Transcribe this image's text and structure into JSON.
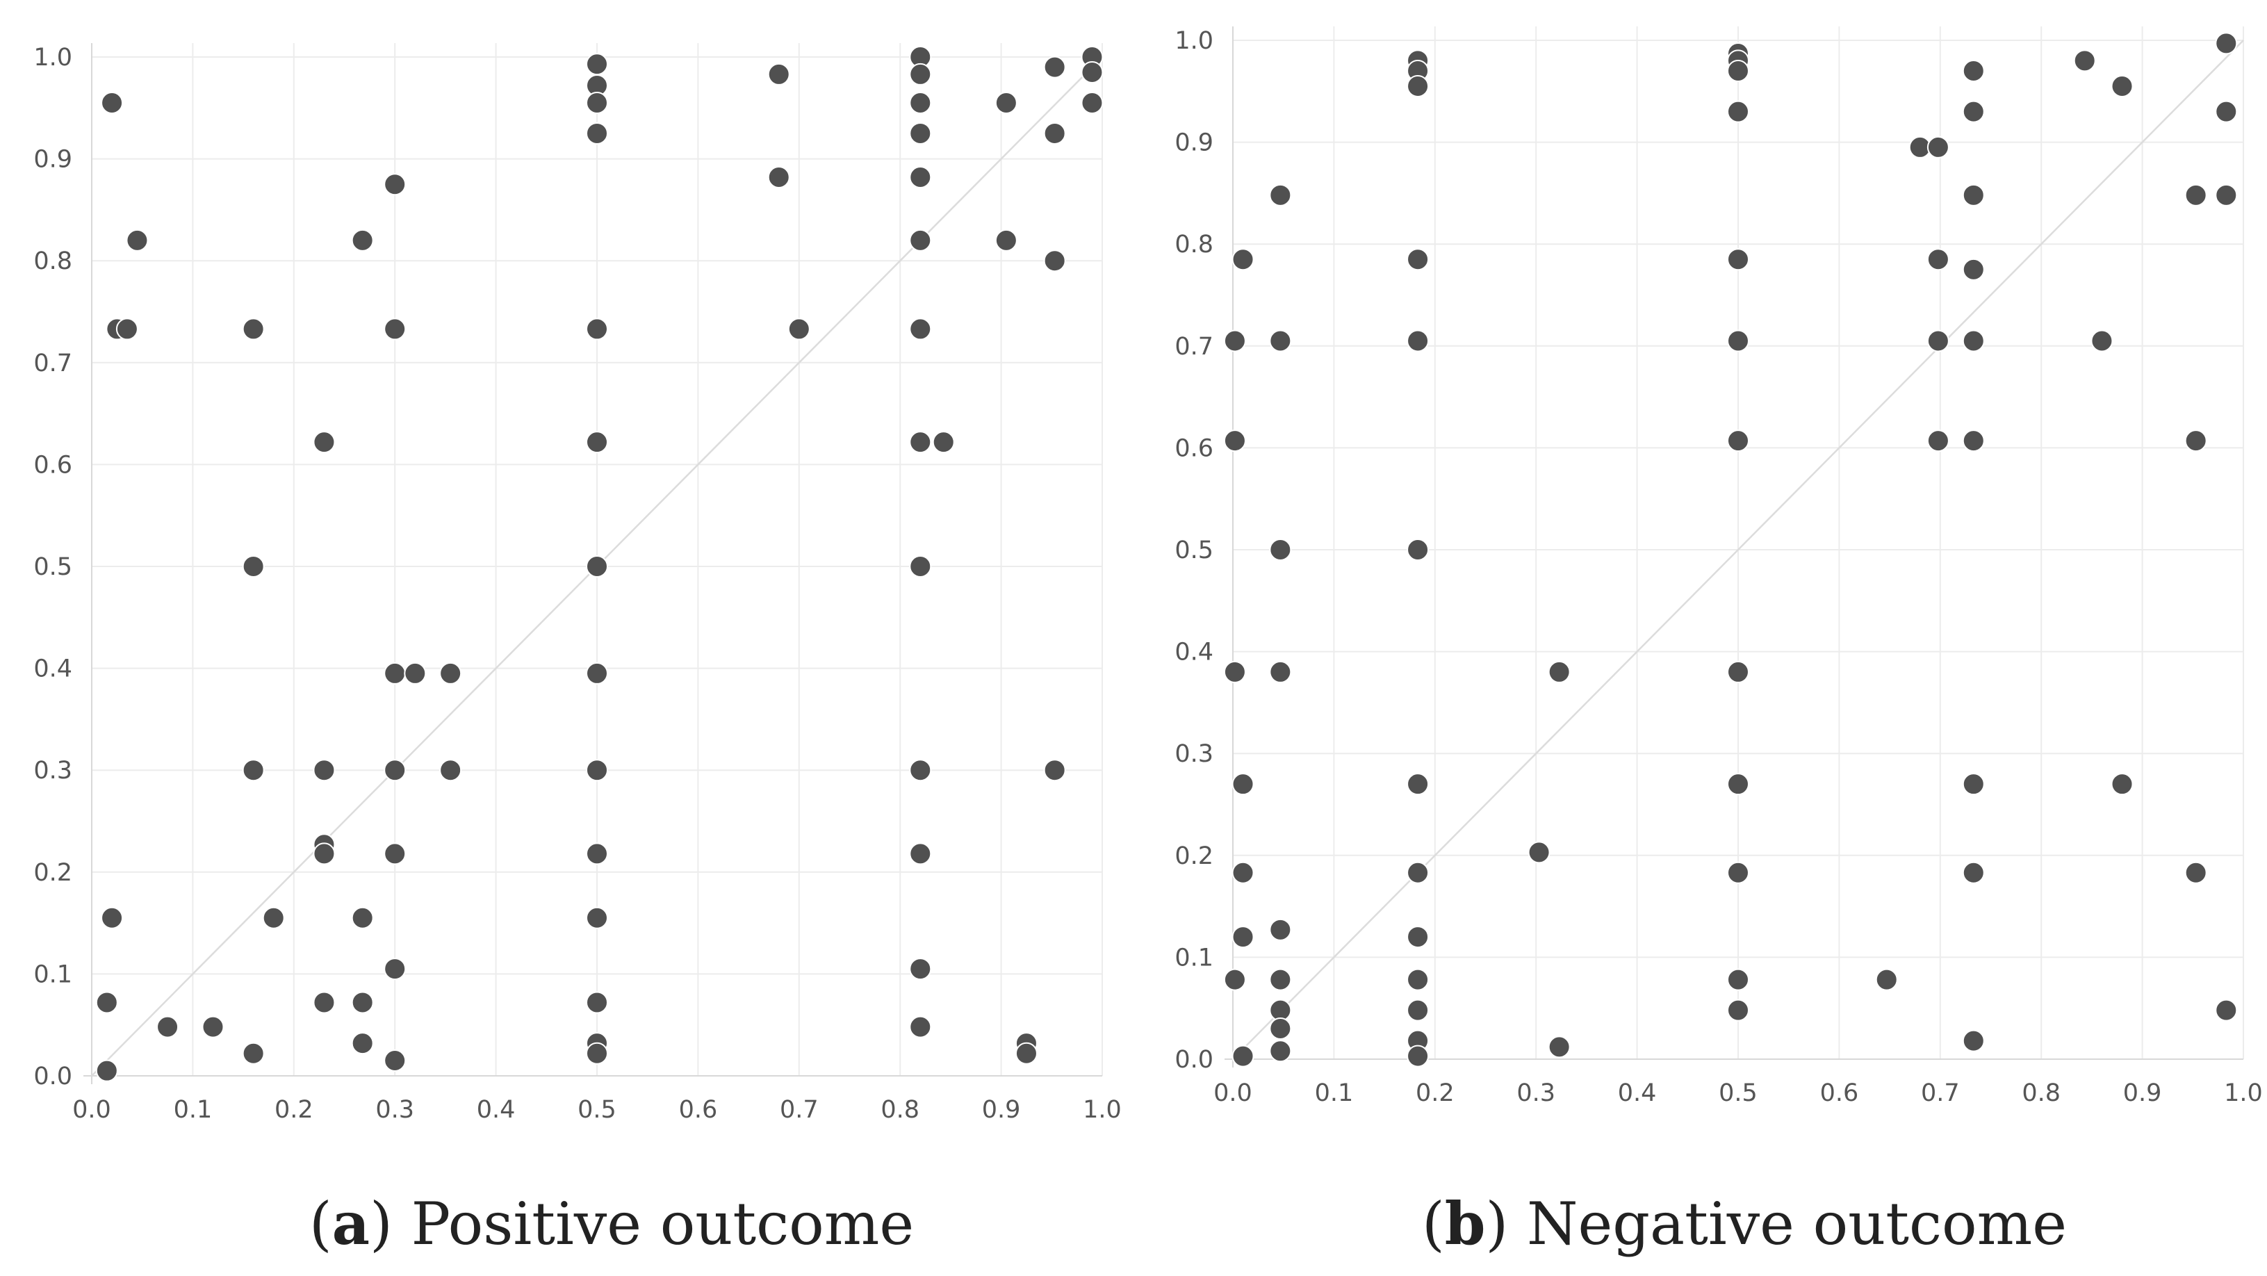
{
  "chart_data": [
    {
      "type": "scatter",
      "panel_label": "a",
      "title": "Positive outcome",
      "xlim": [
        0,
        1
      ],
      "ylim": [
        0,
        1
      ],
      "x_ticks": [
        "0.0",
        "0.1",
        "0.2",
        "0.3",
        "0.4",
        "0.5",
        "0.6",
        "0.7",
        "0.8",
        "0.9",
        "1.0"
      ],
      "y_ticks": [
        "0.0",
        "0.1",
        "0.2",
        "0.3",
        "0.4",
        "0.5",
        "0.6",
        "0.7",
        "0.8",
        "0.9",
        "1.0"
      ],
      "reference_line": "y = x",
      "colors": {
        "point": "#505050",
        "grid": "#ececec",
        "diagonal": "#dcdcdc"
      },
      "points": [
        [
          0.02,
          0.955
        ],
        [
          0.045,
          0.82
        ],
        [
          0.025,
          0.733
        ],
        [
          0.035,
          0.733
        ],
        [
          0.02,
          0.155
        ],
        [
          0.015,
          0.072
        ],
        [
          0.015,
          0.005
        ],
        [
          0.075,
          0.048
        ],
        [
          0.12,
          0.048
        ],
        [
          0.16,
          0.733
        ],
        [
          0.16,
          0.5
        ],
        [
          0.16,
          0.3
        ],
        [
          0.16,
          0.022
        ],
        [
          0.18,
          0.155
        ],
        [
          0.23,
          0.622
        ],
        [
          0.23,
          0.3
        ],
        [
          0.23,
          0.227
        ],
        [
          0.23,
          0.218
        ],
        [
          0.23,
          0.072
        ],
        [
          0.268,
          0.82
        ],
        [
          0.268,
          0.155
        ],
        [
          0.268,
          0.072
        ],
        [
          0.268,
          0.032
        ],
        [
          0.3,
          0.875
        ],
        [
          0.3,
          0.733
        ],
        [
          0.3,
          0.395
        ],
        [
          0.3,
          0.3
        ],
        [
          0.3,
          0.218
        ],
        [
          0.3,
          0.105
        ],
        [
          0.3,
          0.015
        ],
        [
          0.32,
          0.395
        ],
        [
          0.355,
          0.395
        ],
        [
          0.355,
          0.3
        ],
        [
          0.5,
          0.993
        ],
        [
          0.5,
          0.972
        ],
        [
          0.5,
          0.955
        ],
        [
          0.5,
          0.925
        ],
        [
          0.5,
          0.733
        ],
        [
          0.5,
          0.622
        ],
        [
          0.5,
          0.5
        ],
        [
          0.5,
          0.395
        ],
        [
          0.5,
          0.3
        ],
        [
          0.5,
          0.218
        ],
        [
          0.5,
          0.155
        ],
        [
          0.5,
          0.072
        ],
        [
          0.5,
          0.032
        ],
        [
          0.5,
          0.022
        ],
        [
          0.68,
          0.983
        ],
        [
          0.68,
          0.882
        ],
        [
          0.7,
          0.733
        ],
        [
          0.82,
          1.0
        ],
        [
          0.82,
          0.983
        ],
        [
          0.82,
          0.955
        ],
        [
          0.82,
          0.925
        ],
        [
          0.82,
          0.882
        ],
        [
          0.82,
          0.82
        ],
        [
          0.82,
          0.733
        ],
        [
          0.82,
          0.622
        ],
        [
          0.82,
          0.5
        ],
        [
          0.82,
          0.3
        ],
        [
          0.82,
          0.218
        ],
        [
          0.82,
          0.105
        ],
        [
          0.82,
          0.048
        ],
        [
          0.843,
          0.622
        ],
        [
          0.905,
          0.955
        ],
        [
          0.905,
          0.82
        ],
        [
          0.925,
          0.032
        ],
        [
          0.925,
          0.022
        ],
        [
          0.953,
          0.99
        ],
        [
          0.953,
          0.925
        ],
        [
          0.953,
          0.8
        ],
        [
          0.953,
          0.3
        ],
        [
          0.99,
          1.0
        ],
        [
          0.99,
          0.985
        ],
        [
          0.99,
          0.955
        ]
      ]
    },
    {
      "type": "scatter",
      "panel_label": "b",
      "title": "Negative outcome",
      "xlim": [
        0,
        1
      ],
      "ylim": [
        0,
        1
      ],
      "x_ticks": [
        "0.0",
        "0.1",
        "0.2",
        "0.3",
        "0.4",
        "0.5",
        "0.6",
        "0.7",
        "0.8",
        "0.9",
        "1.0"
      ],
      "y_ticks": [
        "0.0",
        "0.1",
        "0.2",
        "0.3",
        "0.4",
        "0.5",
        "0.6",
        "0.7",
        "0.8",
        "0.9",
        "1.0"
      ],
      "reference_line": "y = x",
      "colors": {
        "point": "#505050",
        "grid": "#ececec",
        "diagonal": "#dcdcdc"
      },
      "points": [
        [
          0.002,
          0.705
        ],
        [
          0.002,
          0.607
        ],
        [
          0.002,
          0.38
        ],
        [
          0.002,
          0.078
        ],
        [
          0.01,
          0.785
        ],
        [
          0.01,
          0.27
        ],
        [
          0.01,
          0.183
        ],
        [
          0.01,
          0.12
        ],
        [
          0.01,
          0.003
        ],
        [
          0.047,
          0.848
        ],
        [
          0.047,
          0.705
        ],
        [
          0.047,
          0.5
        ],
        [
          0.047,
          0.38
        ],
        [
          0.047,
          0.127
        ],
        [
          0.047,
          0.078
        ],
        [
          0.047,
          0.048
        ],
        [
          0.047,
          0.03
        ],
        [
          0.047,
          0.008
        ],
        [
          0.183,
          0.98
        ],
        [
          0.183,
          0.97
        ],
        [
          0.183,
          0.955
        ],
        [
          0.183,
          0.785
        ],
        [
          0.183,
          0.705
        ],
        [
          0.183,
          0.5
        ],
        [
          0.183,
          0.27
        ],
        [
          0.183,
          0.183
        ],
        [
          0.183,
          0.12
        ],
        [
          0.183,
          0.078
        ],
        [
          0.183,
          0.048
        ],
        [
          0.183,
          0.018
        ],
        [
          0.183,
          0.003
        ],
        [
          0.303,
          0.203
        ],
        [
          0.323,
          0.38
        ],
        [
          0.323,
          0.012
        ],
        [
          0.5,
          0.987
        ],
        [
          0.5,
          0.98
        ],
        [
          0.5,
          0.97
        ],
        [
          0.5,
          0.93
        ],
        [
          0.5,
          0.785
        ],
        [
          0.5,
          0.705
        ],
        [
          0.5,
          0.607
        ],
        [
          0.5,
          0.38
        ],
        [
          0.5,
          0.27
        ],
        [
          0.5,
          0.183
        ],
        [
          0.5,
          0.078
        ],
        [
          0.5,
          0.048
        ],
        [
          0.647,
          0.078
        ],
        [
          0.68,
          0.895
        ],
        [
          0.698,
          0.895
        ],
        [
          0.698,
          0.785
        ],
        [
          0.698,
          0.705
        ],
        [
          0.698,
          0.607
        ],
        [
          0.733,
          0.97
        ],
        [
          0.733,
          0.93
        ],
        [
          0.733,
          0.848
        ],
        [
          0.733,
          0.775
        ],
        [
          0.733,
          0.705
        ],
        [
          0.733,
          0.607
        ],
        [
          0.733,
          0.27
        ],
        [
          0.733,
          0.183
        ],
        [
          0.733,
          0.018
        ],
        [
          0.843,
          0.98
        ],
        [
          0.86,
          0.705
        ],
        [
          0.88,
          0.955
        ],
        [
          0.88,
          0.27
        ],
        [
          0.953,
          0.848
        ],
        [
          0.953,
          0.607
        ],
        [
          0.953,
          0.183
        ],
        [
          0.983,
          0.997
        ],
        [
          0.983,
          0.93
        ],
        [
          0.983,
          0.848
        ],
        [
          0.983,
          0.048
        ]
      ]
    }
  ]
}
